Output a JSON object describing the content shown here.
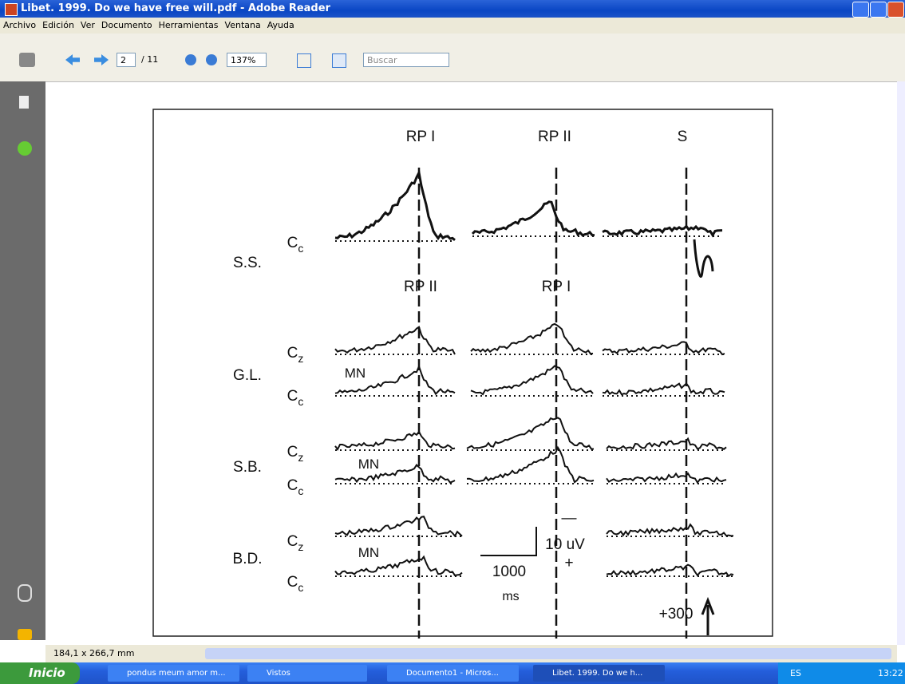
{
  "window": {
    "title": "Libet. 1999. Do we have free will.pdf - Adobe Reader"
  },
  "menu": [
    "Archivo",
    "Edición",
    "Ver",
    "Documento",
    "Herramientas",
    "Ventana",
    "Ayuda"
  ],
  "toolbar": {
    "page": "2",
    "page_count": "/ 11",
    "zoom": "137%",
    "search": "Buscar"
  },
  "figure": {
    "top_labels": [
      "RP I",
      "RP II",
      "S"
    ],
    "mid_labels": [
      "RP II",
      "RP I"
    ],
    "subjects": [
      "S.S.",
      "G.L.",
      "S.B.",
      "B.D."
    ],
    "channels": [
      {
        "letter": "C",
        "sub": "c"
      },
      {
        "letter": "C",
        "sub": "z"
      },
      {
        "letter": "C",
        "sub": "c"
      },
      {
        "letter": "C",
        "sub": "z"
      },
      {
        "letter": "C",
        "sub": "c"
      },
      {
        "letter": "C",
        "sub": "z"
      },
      {
        "letter": "C",
        "sub": "c"
      }
    ],
    "mn": [
      "MN",
      "MN",
      "MN"
    ],
    "scale": {
      "minus": "—",
      "volt": "10 uV",
      "plus": "+",
      "time": "1000",
      "time_unit": "ms"
    },
    "marker": "+300"
  },
  "status": {
    "size": "184,1 x 266,7 mm"
  },
  "taskbar": {
    "start": "Inicio",
    "items": [
      "pondus meum amor m...",
      "Vistos",
      "Documento1 - Micros...",
      "Libet. 1999. Do we h..."
    ],
    "lang": "ES",
    "clock": "13:22"
  }
}
